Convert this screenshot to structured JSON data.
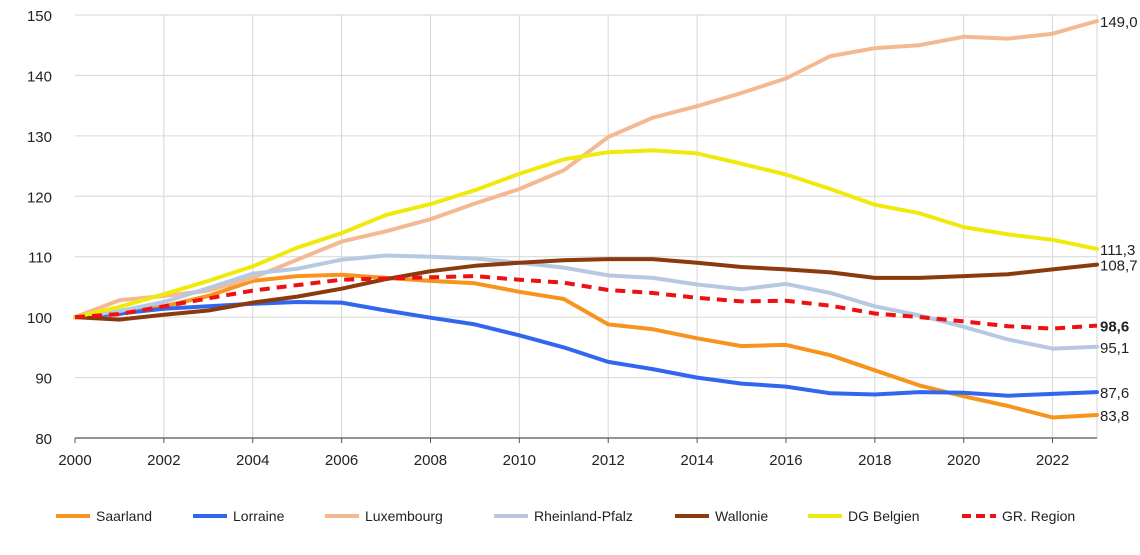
{
  "chart_data": {
    "type": "line",
    "title": "",
    "xlabel": "",
    "ylabel": "",
    "xlim": [
      2000,
      2023
    ],
    "ylim": [
      80,
      150
    ],
    "grid": true,
    "legend_position": "bottom",
    "x": [
      2000,
      2001,
      2002,
      2003,
      2004,
      2005,
      2006,
      2007,
      2008,
      2009,
      2010,
      2011,
      2012,
      2013,
      2014,
      2015,
      2016,
      2017,
      2018,
      2019,
      2020,
      2021,
      2022,
      2023
    ],
    "x_ticks": [
      "2000",
      "2002",
      "2004",
      "2006",
      "2008",
      "2010",
      "2012",
      "2014",
      "2016",
      "2018",
      "2020",
      "2022"
    ],
    "y_ticks": [
      "80",
      "90",
      "100",
      "110",
      "120",
      "130",
      "140",
      "150"
    ],
    "series": [
      {
        "name": "Saarland",
        "color": "#f7941d",
        "dashed": false,
        "end_label": "83,8",
        "end_bold": false,
        "values": [
          100,
          100.5,
          101.8,
          103.5,
          106,
          106.8,
          107,
          106.5,
          106,
          105.6,
          104.2,
          103,
          98.8,
          98,
          96.5,
          95.2,
          95.4,
          93.7,
          91.2,
          88.7,
          86.9,
          85.3,
          83.4,
          83.8
        ]
      },
      {
        "name": "Lorraine",
        "color": "#3366ee",
        "dashed": false,
        "end_label": "87,6",
        "end_bold": false,
        "values": [
          100,
          100.6,
          101.4,
          101.8,
          102.2,
          102.5,
          102.4,
          101.1,
          99.9,
          98.8,
          97,
          95,
          92.6,
          91.4,
          90,
          89,
          88.5,
          87.4,
          87.2,
          87.6,
          87.5,
          87,
          87.3,
          87.6
        ]
      },
      {
        "name": "Luxembourg",
        "color": "#f5b992",
        "dashed": false,
        "end_label": "149,0",
        "end_bold": false,
        "values": [
          100,
          102.8,
          103.5,
          104.4,
          106.5,
          109.5,
          112.5,
          114.2,
          116.2,
          118.8,
          121.2,
          124.3,
          129.8,
          133,
          134.9,
          137.1,
          139.5,
          143.2,
          144.5,
          145,
          146.4,
          146.1,
          146.9,
          149
        ]
      },
      {
        "name": "Rheinland-Pfalz",
        "color": "#b7c9e2",
        "dashed": false,
        "end_label": "95,1",
        "end_bold": false,
        "values": [
          100,
          101,
          102.5,
          104.8,
          107.2,
          108,
          109.5,
          110.2,
          110,
          109.7,
          109,
          108.2,
          106.9,
          106.5,
          105.4,
          104.6,
          105.5,
          104,
          101.8,
          100.3,
          98.4,
          96.3,
          94.8,
          95.1
        ]
      },
      {
        "name": "Wallonie",
        "color": "#8b3a0e",
        "dashed": false,
        "end_label": "108,7",
        "end_bold": false,
        "values": [
          100,
          99.6,
          100.4,
          101.1,
          102.4,
          103.4,
          104.7,
          106.3,
          107.6,
          108.5,
          109,
          109.4,
          109.6,
          109.6,
          109,
          108.3,
          107.9,
          107.4,
          106.5,
          106.5,
          106.8,
          107.1,
          107.9,
          108.7
        ]
      },
      {
        "name": "DG Belgien",
        "color": "#f0ea0c",
        "dashed": false,
        "end_label": "111,3",
        "end_bold": false,
        "values": [
          100,
          101.7,
          103.8,
          106,
          108.4,
          111.5,
          113.9,
          116.9,
          118.7,
          121,
          123.7,
          126.1,
          127.3,
          127.6,
          127.1,
          125.4,
          123.6,
          121.2,
          118.6,
          117.2,
          114.9,
          113.7,
          112.8,
          111.3
        ]
      },
      {
        "name": "GR. Region",
        "color": "#ee1111",
        "dashed": true,
        "end_label": "98,6",
        "end_bold": true,
        "values": [
          100,
          100.5,
          101.8,
          103.1,
          104.4,
          105.3,
          106.2,
          106.4,
          106.6,
          106.8,
          106.2,
          105.7,
          104.5,
          104,
          103.2,
          102.6,
          102.7,
          101.9,
          100.6,
          100,
          99.3,
          98.5,
          98.1,
          98.6
        ]
      }
    ]
  }
}
